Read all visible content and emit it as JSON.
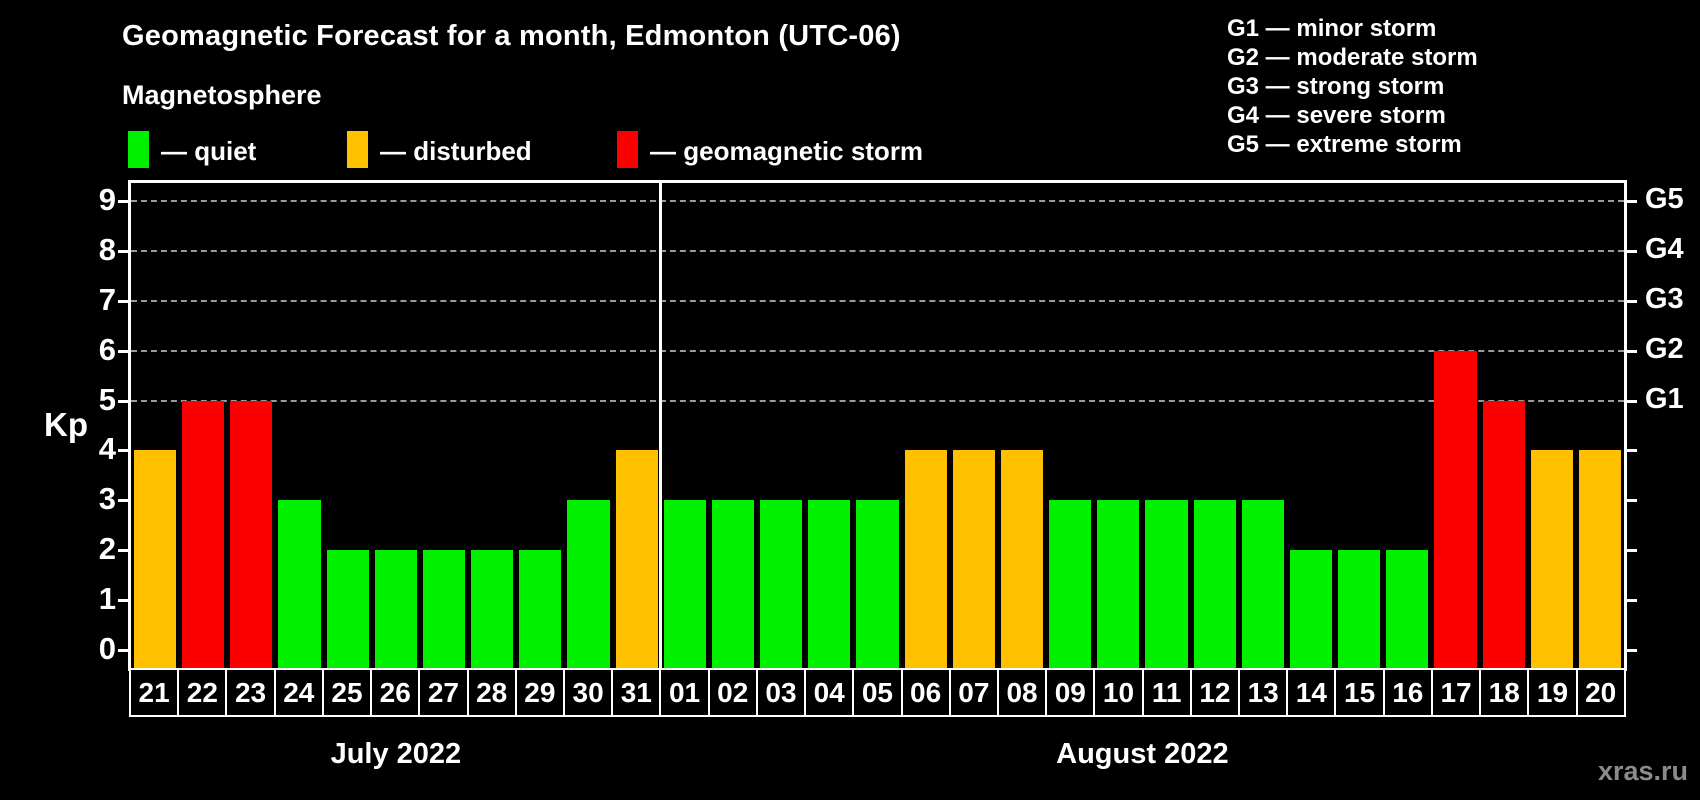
{
  "page": {
    "background": "#000000",
    "watermark": "xras.ru"
  },
  "header": {
    "title": "Geomagnetic Forecast for a month, Edmonton (UTC-06)",
    "subtitle": "Magnetosphere",
    "legend": [
      {
        "state": "quiet",
        "label": "— quiet"
      },
      {
        "state": "disturbed",
        "label": "— disturbed"
      },
      {
        "state": "storm",
        "label": "— geomagnetic storm"
      }
    ],
    "g_scale_legend": [
      "G1 — minor storm",
      "G2 — moderate storm",
      "G3 — strong storm",
      "G4 — severe storm",
      "G5 — extreme storm"
    ]
  },
  "chart_data": {
    "type": "bar",
    "title": "Geomagnetic Forecast for a month, Edmonton (UTC-06)",
    "ylabel": "Kp",
    "ylim": [
      0,
      9
    ],
    "grid": "dashed horizontal lines at Kp 5-9 only",
    "y_ticks": [
      0,
      1,
      2,
      3,
      4,
      5,
      6,
      7,
      8,
      9
    ],
    "grid_ticks": [
      5,
      6,
      7,
      8,
      9
    ],
    "right_axis_labels": [
      {
        "label": "G1",
        "kp": 5
      },
      {
        "label": "G2",
        "kp": 6
      },
      {
        "label": "G3",
        "kp": 7
      },
      {
        "label": "G4",
        "kp": 8
      },
      {
        "label": "G5",
        "kp": 9
      }
    ],
    "colors": {
      "quiet": "#00f000",
      "disturbed": "#ffc000",
      "storm": "#fc0000"
    },
    "months": [
      {
        "label": "July 2022",
        "days": 11
      },
      {
        "label": "August 2022",
        "days": 20
      }
    ],
    "bars": [
      {
        "day": "21",
        "kp": 4,
        "state": "disturbed"
      },
      {
        "day": "22",
        "kp": 5,
        "state": "storm"
      },
      {
        "day": "23",
        "kp": 5,
        "state": "storm"
      },
      {
        "day": "24",
        "kp": 3,
        "state": "quiet"
      },
      {
        "day": "25",
        "kp": 2,
        "state": "quiet"
      },
      {
        "day": "26",
        "kp": 2,
        "state": "quiet"
      },
      {
        "day": "27",
        "kp": 2,
        "state": "quiet"
      },
      {
        "day": "28",
        "kp": 2,
        "state": "quiet"
      },
      {
        "day": "29",
        "kp": 2,
        "state": "quiet"
      },
      {
        "day": "30",
        "kp": 3,
        "state": "quiet"
      },
      {
        "day": "31",
        "kp": 4,
        "state": "disturbed"
      },
      {
        "day": "01",
        "kp": 3,
        "state": "quiet"
      },
      {
        "day": "02",
        "kp": 3,
        "state": "quiet"
      },
      {
        "day": "03",
        "kp": 3,
        "state": "quiet"
      },
      {
        "day": "04",
        "kp": 3,
        "state": "quiet"
      },
      {
        "day": "05",
        "kp": 3,
        "state": "quiet"
      },
      {
        "day": "06",
        "kp": 4,
        "state": "disturbed"
      },
      {
        "day": "07",
        "kp": 4,
        "state": "disturbed"
      },
      {
        "day": "08",
        "kp": 4,
        "state": "disturbed"
      },
      {
        "day": "09",
        "kp": 3,
        "state": "quiet"
      },
      {
        "day": "10",
        "kp": 3,
        "state": "quiet"
      },
      {
        "day": "11",
        "kp": 3,
        "state": "quiet"
      },
      {
        "day": "12",
        "kp": 3,
        "state": "quiet"
      },
      {
        "day": "13",
        "kp": 3,
        "state": "quiet"
      },
      {
        "day": "14",
        "kp": 2,
        "state": "quiet"
      },
      {
        "day": "15",
        "kp": 2,
        "state": "quiet"
      },
      {
        "day": "16",
        "kp": 2,
        "state": "quiet"
      },
      {
        "day": "17",
        "kp": 6,
        "state": "storm"
      },
      {
        "day": "18",
        "kp": 5,
        "state": "storm"
      },
      {
        "day": "19",
        "kp": 4,
        "state": "disturbed"
      },
      {
        "day": "20",
        "kp": 4,
        "state": "disturbed"
      }
    ],
    "legend_position": "top-left (state colors) and top-right (G storm scale)",
    "watermark": "xras.ru"
  }
}
